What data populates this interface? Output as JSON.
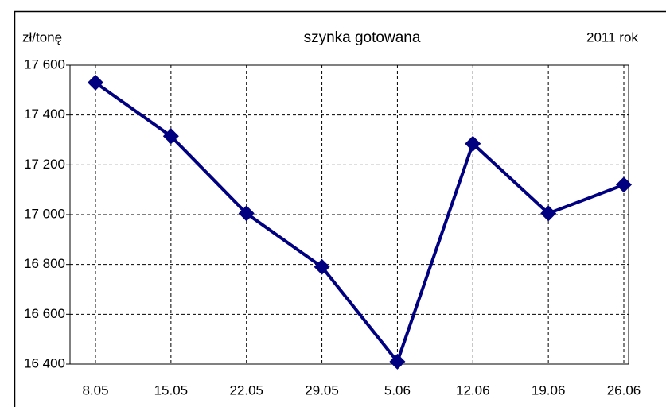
{
  "chart_data": {
    "type": "line",
    "title": "szynka gotowana",
    "y_axis_label": "zł/tonę",
    "annotation": "2011 rok",
    "categories": [
      "8.05",
      "15.05",
      "22.05",
      "29.05",
      "5.06",
      "12.06",
      "19.06",
      "26.06"
    ],
    "series": [
      {
        "name": "szynka gotowana",
        "color": "#000080",
        "values": [
          17530,
          17315,
          17005,
          16790,
          16410,
          17285,
          17005,
          17120
        ]
      }
    ],
    "ylim": [
      16400,
      17600
    ],
    "yticks": [
      {
        "value": 16400,
        "label": "16 400"
      },
      {
        "value": 16600,
        "label": "16 600"
      },
      {
        "value": 16800,
        "label": "16 800"
      },
      {
        "value": 17000,
        "label": "17 000"
      },
      {
        "value": 17200,
        "label": "17 200"
      },
      {
        "value": 17400,
        "label": "17 400"
      },
      {
        "value": 17600,
        "label": "17 600"
      }
    ],
    "grid": true
  }
}
